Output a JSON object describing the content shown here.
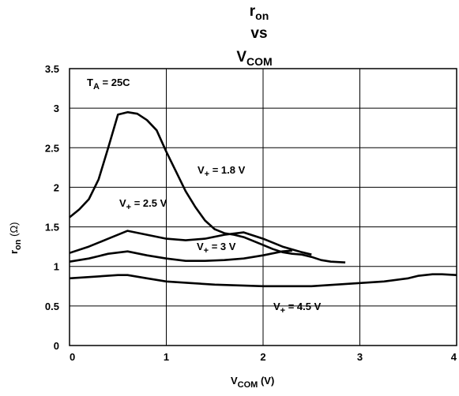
{
  "chart_data": {
    "type": "line",
    "title": {
      "main": "r",
      "main_sub": "on",
      "line2": "vs",
      "line3": "V",
      "line3_sub": "COM"
    },
    "xlabel": {
      "main": "V",
      "sub": "COM",
      "rest": " (V)"
    },
    "ylabel": {
      "main": "r",
      "sub": "on",
      "rest": " (Ω)"
    },
    "xlim": [
      0,
      4
    ],
    "ylim": [
      0,
      3.5
    ],
    "xticks": [
      "0",
      "1",
      "2",
      "3",
      "4"
    ],
    "yticks": [
      "0",
      "0.5",
      "1",
      "1.5",
      "2",
      "2.5",
      "3",
      "3.5"
    ],
    "grid": true,
    "annotation": {
      "main": "T",
      "sub": "A",
      "rest": " = 25C"
    },
    "series": [
      {
        "name": "V+ = 1.8 V",
        "label": {
          "main": "V",
          "sub": "+",
          "rest": " = 1.8 V"
        },
        "x": [
          0,
          0.1,
          0.2,
          0.3,
          0.4,
          0.5,
          0.6,
          0.7,
          0.8,
          0.9,
          1.0,
          1.1,
          1.2,
          1.3,
          1.4,
          1.5,
          1.6,
          1.7,
          1.8,
          1.9,
          2.0,
          2.1,
          2.2,
          2.3,
          2.4,
          2.5,
          2.6,
          2.7,
          2.85
        ],
        "y": [
          1.62,
          1.72,
          1.85,
          2.1,
          2.5,
          2.92,
          2.95,
          2.93,
          2.85,
          2.72,
          2.45,
          2.2,
          1.95,
          1.75,
          1.58,
          1.47,
          1.42,
          1.4,
          1.37,
          1.32,
          1.27,
          1.22,
          1.18,
          1.16,
          1.15,
          1.12,
          1.08,
          1.06,
          1.05
        ]
      },
      {
        "name": "V+ = 2.5 V",
        "label": {
          "main": "V",
          "sub": "+",
          "rest": " = 2.5 V"
        },
        "x": [
          0,
          0.2,
          0.4,
          0.6,
          0.8,
          1.0,
          1.2,
          1.4,
          1.6,
          1.8,
          2.0,
          2.2,
          2.4,
          2.5
        ],
        "y": [
          1.17,
          1.25,
          1.35,
          1.45,
          1.4,
          1.35,
          1.33,
          1.35,
          1.4,
          1.43,
          1.35,
          1.25,
          1.18,
          1.15
        ]
      },
      {
        "name": "V+ = 3 V",
        "label": {
          "main": "V",
          "sub": "+",
          "rest": " = 3 V"
        },
        "x": [
          0,
          0.2,
          0.4,
          0.6,
          0.8,
          1.0,
          1.2,
          1.4,
          1.6,
          1.8,
          2.0,
          2.2,
          2.3
        ],
        "y": [
          1.06,
          1.1,
          1.16,
          1.19,
          1.14,
          1.1,
          1.07,
          1.07,
          1.08,
          1.1,
          1.14,
          1.19,
          1.2
        ]
      },
      {
        "name": "V+ = 4.5 V",
        "label": {
          "main": "V",
          "sub": "+",
          "rest": " = 4.5 V"
        },
        "x": [
          0,
          0.25,
          0.5,
          0.6,
          0.8,
          1.0,
          1.25,
          1.5,
          1.75,
          2.0,
          2.25,
          2.5,
          2.75,
          3.0,
          3.25,
          3.5,
          3.6,
          3.75,
          3.85,
          4.0
        ],
        "y": [
          0.85,
          0.87,
          0.89,
          0.89,
          0.85,
          0.81,
          0.79,
          0.77,
          0.76,
          0.75,
          0.75,
          0.75,
          0.77,
          0.79,
          0.81,
          0.85,
          0.88,
          0.9,
          0.9,
          0.89
        ]
      }
    ]
  }
}
